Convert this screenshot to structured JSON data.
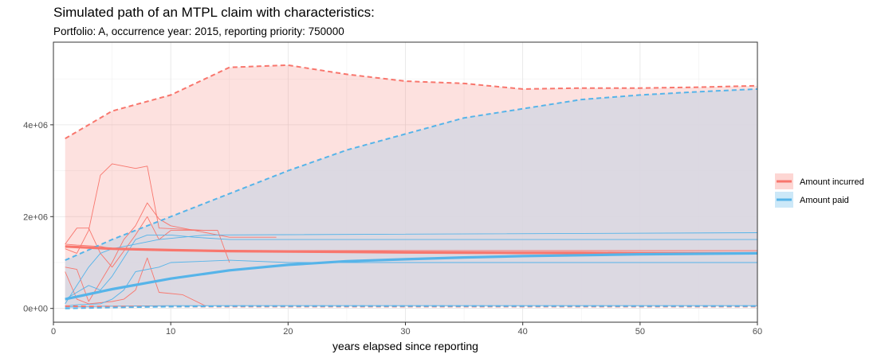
{
  "chart_data": {
    "type": "line",
    "title": "Simulated path of an MTPL claim with characteristics:",
    "subtitle": "Portfolio: A, occurrence year: 2015, reporting priority: 750000",
    "xlabel": "years elapsed since reporting",
    "ylabel": "",
    "xlim": [
      0,
      60
    ],
    "ylim": [
      -300000,
      5800000
    ],
    "x_ticks": [
      0,
      10,
      20,
      30,
      40,
      50,
      60
    ],
    "x_tick_labels": [
      "0",
      "10",
      "20",
      "30",
      "40",
      "50",
      "60"
    ],
    "y_ticks": [
      0,
      2000000,
      4000000
    ],
    "y_tick_labels": [
      "0e+00",
      "2e+06",
      "4e+06"
    ],
    "grid": true,
    "legend_position": "right",
    "colors": {
      "incurred": "#f8766d",
      "paid": "#56b4e9",
      "overlap": "#d8d8e2"
    },
    "series": [
      {
        "name": "Amount incurred",
        "key": "incurred",
        "x": [
          1,
          5,
          10,
          15,
          20,
          25,
          30,
          35,
          40,
          45,
          50,
          55,
          60
        ],
        "mean": [
          1350000,
          1300000,
          1270000,
          1250000,
          1240000,
          1230000,
          1220000,
          1215000,
          1210000,
          1210000,
          1205000,
          1200000,
          1200000
        ],
        "upper": [
          3700000,
          4300000,
          4650000,
          5250000,
          5300000,
          5100000,
          4950000,
          4900000,
          4780000,
          4800000,
          4800000,
          4820000,
          4850000
        ],
        "lower": [
          50000,
          40000,
          40000,
          40000,
          40000,
          40000,
          40000,
          40000,
          40000,
          40000,
          40000,
          40000,
          40000
        ]
      },
      {
        "name": "Amount paid",
        "key": "paid",
        "x": [
          1,
          5,
          10,
          15,
          20,
          25,
          30,
          35,
          40,
          45,
          50,
          55,
          60
        ],
        "mean": [
          200000,
          420000,
          650000,
          830000,
          950000,
          1030000,
          1070000,
          1110000,
          1140000,
          1160000,
          1180000,
          1190000,
          1200000
        ],
        "upper": [
          1050000,
          1500000,
          2000000,
          2500000,
          3000000,
          3450000,
          3800000,
          4150000,
          4350000,
          4550000,
          4650000,
          4720000,
          4780000
        ],
        "lower": [
          0,
          20000,
          40000,
          50000,
          50000,
          50000,
          50000,
          50000,
          50000,
          50000,
          50000,
          50000,
          50000
        ]
      }
    ],
    "sample_paths": [
      {
        "series": "incurred",
        "x": [
          1,
          2,
          4,
          5,
          6,
          8,
          9,
          10,
          15,
          20,
          60
        ],
        "y": [
          1400000,
          1380000,
          1350000,
          1300000,
          1280000,
          1270000,
          1260000,
          1260000,
          1260000,
          1260000,
          1260000
        ]
      },
      {
        "series": "incurred",
        "x": [
          1,
          2,
          3,
          4,
          5,
          6,
          7,
          8,
          9,
          13,
          14
        ],
        "y": [
          1300000,
          1200000,
          1700000,
          2900000,
          3150000,
          3100000,
          3050000,
          3100000,
          1750000,
          1700000,
          1700000
        ]
      },
      {
        "series": "incurred",
        "x": [
          1,
          2,
          3,
          4,
          5,
          7,
          8,
          9,
          10,
          14,
          15
        ],
        "y": [
          1400000,
          1750000,
          1750000,
          1200000,
          900000,
          1600000,
          2000000,
          1500000,
          1700000,
          1700000,
          1000000
        ]
      },
      {
        "series": "incurred",
        "x": [
          1,
          2,
          3,
          5,
          6,
          7,
          8,
          9,
          10,
          12,
          15,
          19
        ],
        "y": [
          900000,
          850000,
          150000,
          1000000,
          1500000,
          1800000,
          2300000,
          1950000,
          1800000,
          1700000,
          1550000,
          1550000
        ]
      },
      {
        "series": "incurred",
        "x": [
          1,
          2,
          3,
          5,
          6,
          7,
          8,
          9,
          11,
          13
        ],
        "y": [
          800000,
          200000,
          100000,
          150000,
          200000,
          400000,
          1100000,
          350000,
          300000,
          50000
        ]
      },
      {
        "series": "paid",
        "x": [
          1,
          2,
          3,
          4,
          5,
          6,
          7,
          9,
          11,
          13,
          60
        ],
        "y": [
          100000,
          500000,
          900000,
          1200000,
          1300000,
          1350000,
          1400000,
          1500000,
          1550000,
          1600000,
          1650000
        ]
      },
      {
        "series": "paid",
        "x": [
          1,
          2,
          3,
          4,
          5,
          6,
          7,
          8,
          10,
          12,
          15,
          60
        ],
        "y": [
          200000,
          350000,
          500000,
          400000,
          700000,
          1100000,
          1500000,
          1600000,
          1600000,
          1550000,
          1500000,
          1500000
        ]
      },
      {
        "series": "paid",
        "x": [
          1,
          2,
          4,
          5,
          6,
          7,
          9,
          10,
          15,
          20,
          60
        ],
        "y": [
          50000,
          80000,
          100000,
          200000,
          400000,
          800000,
          900000,
          1000000,
          1050000,
          1000000,
          1000000
        ]
      },
      {
        "series": "paid",
        "x": [
          1,
          2,
          5,
          10,
          15,
          60
        ],
        "y": [
          30000,
          40000,
          50000,
          60000,
          60000,
          60000
        ]
      }
    ]
  }
}
